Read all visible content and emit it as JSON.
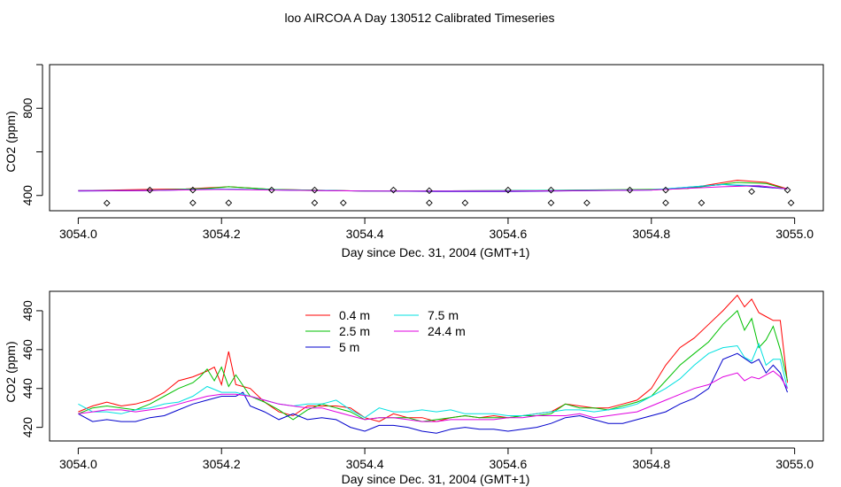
{
  "title": "loo AIRCOA A  Day 130512  Calibrated Timeseries",
  "chart_data": [
    {
      "type": "line",
      "title": "",
      "xlabel": "Day since Dec. 31, 2004 (GMT+1)",
      "ylabel": "CO2 (ppm)",
      "xlim": [
        3053.96,
        3055.04
      ],
      "ylim": [
        330,
        1000
      ],
      "xticks": [
        3054.0,
        3054.2,
        3054.4,
        3054.6,
        3054.8,
        3055.0
      ],
      "xtick_labels": [
        "3054.0",
        "3054.2",
        "3054.4",
        "3054.6",
        "3054.8",
        "3055.0"
      ],
      "yticks": [
        400,
        600,
        800,
        1000
      ],
      "ytick_labels": [
        "400",
        "",
        "800",
        ""
      ],
      "series": [
        {
          "color": "#ff0000",
          "x": [
            3054.0,
            3054.1,
            3054.15,
            3054.21,
            3054.27,
            3054.4,
            3054.6,
            3054.8,
            3054.85,
            3054.92,
            3054.96,
            3054.99
          ],
          "values": [
            422,
            428,
            430,
            440,
            428,
            420,
            422,
            426,
            432,
            470,
            460,
            430
          ]
        },
        {
          "color": "#00c000",
          "x": [
            3054.0,
            3054.1,
            3054.18,
            3054.21,
            3054.27,
            3054.4,
            3054.6,
            3054.8,
            3054.85,
            3054.92,
            3054.96,
            3054.99
          ],
          "values": [
            422,
            424,
            432,
            440,
            428,
            420,
            422,
            428,
            432,
            460,
            455,
            428
          ]
        },
        {
          "color": "#0000cc",
          "x": [
            3054.0,
            3054.1,
            3054.2,
            3054.3,
            3054.5,
            3054.6,
            3054.8,
            3054.9,
            3054.95,
            3054.99
          ],
          "values": [
            420,
            422,
            430,
            424,
            418,
            418,
            425,
            450,
            440,
            430
          ]
        },
        {
          "color": "#00e0e0",
          "x": [
            3054.0,
            3054.1,
            3054.2,
            3054.4,
            3054.6,
            3054.8,
            3054.9,
            3054.95,
            3054.99
          ],
          "values": [
            422,
            424,
            430,
            420,
            422,
            426,
            450,
            445,
            430
          ]
        },
        {
          "color": "#e000e0",
          "x": [
            3054.0,
            3054.1,
            3054.2,
            3054.4,
            3054.6,
            3054.8,
            3054.9,
            3054.95,
            3054.99
          ],
          "values": [
            422,
            423,
            428,
            420,
            420,
            425,
            440,
            445,
            430
          ]
        }
      ],
      "markers": {
        "style": "open-diamond",
        "x": [
          3054.04,
          3054.1,
          3054.16,
          3054.16,
          3054.21,
          3054.27,
          3054.33,
          3054.33,
          3054.37,
          3054.44,
          3054.49,
          3054.49,
          3054.54,
          3054.6,
          3054.66,
          3054.66,
          3054.71,
          3054.77,
          3054.82,
          3054.82,
          3054.87,
          3054.94,
          3054.99,
          3054.995
        ],
        "values": [
          365,
          425,
          366,
          425,
          366,
          425,
          366,
          425,
          366,
          425,
          366,
          422,
          366,
          425,
          366,
          425,
          366,
          425,
          366,
          425,
          366,
          418,
          425,
          366
        ]
      }
    },
    {
      "type": "line",
      "title": "",
      "xlabel": "Day since Dec. 31, 2004 (GMT+1)",
      "ylabel": "CO2 (ppm)",
      "xlim": [
        3053.96,
        3055.04
      ],
      "ylim": [
        413,
        490
      ],
      "xticks": [
        3054.0,
        3054.2,
        3054.4,
        3054.6,
        3054.8,
        3055.0
      ],
      "xtick_labels": [
        "3054.0",
        "3054.2",
        "3054.4",
        "3054.6",
        "3054.8",
        "3055.0"
      ],
      "yticks": [
        420,
        440,
        460,
        480
      ],
      "ytick_labels": [
        "420",
        "440",
        "460",
        "480"
      ],
      "legend_position": "top-center",
      "series": [
        {
          "name": "0.4 m",
          "color": "#ff0000",
          "x": [
            3054.0,
            3054.02,
            3054.04,
            3054.06,
            3054.08,
            3054.1,
            3054.12,
            3054.14,
            3054.16,
            3054.18,
            3054.19,
            3054.2,
            3054.21,
            3054.22,
            3054.24,
            3054.26,
            3054.28,
            3054.3,
            3054.32,
            3054.34,
            3054.36,
            3054.38,
            3054.4,
            3054.42,
            3054.44,
            3054.46,
            3054.48,
            3054.5,
            3054.52,
            3054.54,
            3054.56,
            3054.58,
            3054.6,
            3054.62,
            3054.64,
            3054.66,
            3054.68,
            3054.7,
            3054.72,
            3054.74,
            3054.76,
            3054.78,
            3054.8,
            3054.82,
            3054.84,
            3054.86,
            3054.88,
            3054.9,
            3054.92,
            3054.93,
            3054.94,
            3054.95,
            3054.96,
            3054.97,
            3054.98,
            3054.99
          ],
          "values": [
            428,
            431,
            433,
            431,
            432,
            434,
            438,
            444,
            446,
            449,
            451,
            442,
            459,
            442,
            440,
            433,
            428,
            426,
            431,
            431,
            431,
            430,
            425,
            423,
            427,
            425,
            425,
            423,
            425,
            426,
            425,
            426,
            425,
            426,
            427,
            428,
            432,
            431,
            430,
            430,
            432,
            434,
            440,
            452,
            461,
            466,
            473,
            480,
            488,
            482,
            486,
            479,
            477,
            475,
            475,
            443
          ]
        },
        {
          "name": "2.5 m",
          "color": "#00c000",
          "x": [
            3054.0,
            3054.02,
            3054.04,
            3054.06,
            3054.08,
            3054.1,
            3054.12,
            3054.14,
            3054.16,
            3054.17,
            3054.18,
            3054.19,
            3054.2,
            3054.21,
            3054.22,
            3054.24,
            3054.26,
            3054.28,
            3054.3,
            3054.32,
            3054.34,
            3054.36,
            3054.38,
            3054.4,
            3054.42,
            3054.44,
            3054.46,
            3054.48,
            3054.5,
            3054.52,
            3054.54,
            3054.56,
            3054.58,
            3054.6,
            3054.62,
            3054.64,
            3054.66,
            3054.68,
            3054.7,
            3054.72,
            3054.74,
            3054.76,
            3054.78,
            3054.8,
            3054.82,
            3054.84,
            3054.86,
            3054.88,
            3054.9,
            3054.92,
            3054.93,
            3054.94,
            3054.95,
            3054.96,
            3054.97,
            3054.98,
            3054.99
          ],
          "values": [
            427,
            430,
            431,
            430,
            429,
            432,
            436,
            440,
            443,
            446,
            450,
            444,
            451,
            441,
            447,
            436,
            433,
            429,
            424,
            429,
            432,
            430,
            428,
            424,
            425,
            425,
            425,
            423,
            424,
            425,
            426,
            425,
            425,
            425,
            426,
            426,
            427,
            432,
            430,
            430,
            429,
            431,
            433,
            436,
            444,
            452,
            458,
            464,
            473,
            480,
            470,
            476,
            461,
            465,
            472,
            460,
            444
          ]
        },
        {
          "name": "5 m",
          "color": "#0000cc",
          "x": [
            3054.0,
            3054.02,
            3054.04,
            3054.06,
            3054.08,
            3054.1,
            3054.12,
            3054.14,
            3054.16,
            3054.18,
            3054.2,
            3054.22,
            3054.23,
            3054.24,
            3054.26,
            3054.28,
            3054.3,
            3054.32,
            3054.34,
            3054.36,
            3054.38,
            3054.4,
            3054.42,
            3054.44,
            3054.46,
            3054.48,
            3054.5,
            3054.52,
            3054.54,
            3054.56,
            3054.58,
            3054.6,
            3054.62,
            3054.64,
            3054.66,
            3054.68,
            3054.7,
            3054.72,
            3054.74,
            3054.76,
            3054.78,
            3054.8,
            3054.82,
            3054.84,
            3054.86,
            3054.88,
            3054.9,
            3054.92,
            3054.94,
            3054.95,
            3054.96,
            3054.97,
            3054.98,
            3054.99
          ],
          "values": [
            427,
            423,
            424,
            423,
            423,
            425,
            426,
            429,
            432,
            434,
            436,
            436,
            438,
            431,
            428,
            424,
            427,
            424,
            425,
            424,
            420,
            418,
            421,
            421,
            420,
            418,
            417,
            419,
            420,
            419,
            419,
            418,
            419,
            420,
            422,
            425,
            426,
            424,
            422,
            422,
            424,
            426,
            428,
            432,
            435,
            440,
            455,
            458,
            453,
            455,
            448,
            452,
            448,
            438
          ]
        },
        {
          "name": "7.5 m",
          "color": "#00e0e0",
          "x": [
            3054.0,
            3054.02,
            3054.04,
            3054.06,
            3054.08,
            3054.1,
            3054.12,
            3054.14,
            3054.16,
            3054.18,
            3054.2,
            3054.22,
            3054.24,
            3054.26,
            3054.28,
            3054.3,
            3054.32,
            3054.34,
            3054.36,
            3054.38,
            3054.4,
            3054.42,
            3054.44,
            3054.46,
            3054.48,
            3054.5,
            3054.52,
            3054.54,
            3054.56,
            3054.58,
            3054.6,
            3054.62,
            3054.64,
            3054.66,
            3054.68,
            3054.7,
            3054.72,
            3054.74,
            3054.76,
            3054.78,
            3054.8,
            3054.82,
            3054.84,
            3054.86,
            3054.88,
            3054.9,
            3054.92,
            3054.93,
            3054.94,
            3054.95,
            3054.96,
            3054.97,
            3054.98,
            3054.99
          ],
          "values": [
            432,
            428,
            428,
            427,
            429,
            430,
            432,
            433,
            436,
            441,
            438,
            438,
            436,
            434,
            432,
            431,
            432,
            432,
            434,
            429,
            425,
            430,
            428,
            428,
            429,
            428,
            429,
            427,
            427,
            427,
            426,
            426,
            427,
            428,
            429,
            429,
            428,
            429,
            430,
            432,
            436,
            440,
            445,
            452,
            458,
            461,
            462,
            456,
            454,
            463,
            452,
            455,
            455,
            440
          ]
        },
        {
          "name": "24.4 m",
          "color": "#e000e0",
          "x": [
            3054.0,
            3054.02,
            3054.04,
            3054.06,
            3054.08,
            3054.1,
            3054.12,
            3054.14,
            3054.16,
            3054.18,
            3054.2,
            3054.22,
            3054.24,
            3054.26,
            3054.28,
            3054.3,
            3054.32,
            3054.34,
            3054.36,
            3054.38,
            3054.4,
            3054.42,
            3054.44,
            3054.46,
            3054.48,
            3054.5,
            3054.52,
            3054.54,
            3054.56,
            3054.58,
            3054.6,
            3054.62,
            3054.64,
            3054.66,
            3054.68,
            3054.7,
            3054.72,
            3054.74,
            3054.76,
            3054.78,
            3054.8,
            3054.82,
            3054.84,
            3054.86,
            3054.88,
            3054.9,
            3054.92,
            3054.93,
            3054.94,
            3054.95,
            3054.96,
            3054.97,
            3054.98,
            3054.99
          ],
          "values": [
            427,
            428,
            429,
            429,
            428,
            429,
            430,
            432,
            434,
            436,
            437,
            437,
            436,
            434,
            432,
            431,
            430,
            430,
            428,
            426,
            424,
            425,
            425,
            424,
            423,
            423,
            424,
            424,
            424,
            424,
            425,
            425,
            426,
            426,
            426,
            427,
            425,
            426,
            427,
            428,
            431,
            434,
            437,
            440,
            442,
            446,
            448,
            444,
            446,
            445,
            447,
            449,
            446,
            440
          ]
        }
      ]
    }
  ]
}
